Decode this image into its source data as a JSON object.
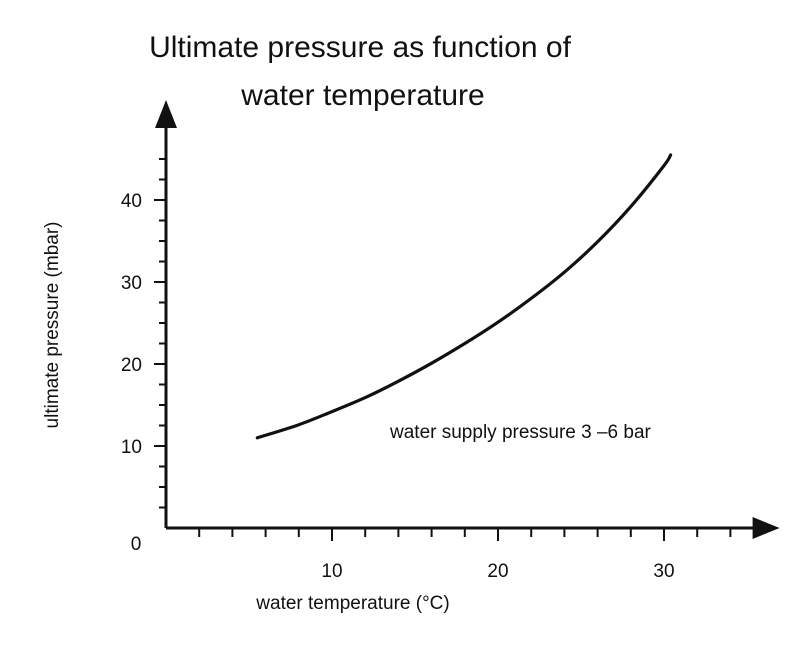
{
  "chart_data": {
    "type": "line",
    "title_lines": [
      "Ultimate pressure as function of",
      "water temperature"
    ],
    "xlabel": "water temperature (°C)",
    "ylabel": "ultimate pressure (mbar)",
    "origin_label": "0",
    "xlim": [
      0,
      36
    ],
    "ylim": [
      0,
      50
    ],
    "x_ticks": [
      10,
      20,
      30
    ],
    "y_ticks": [
      10,
      20,
      30,
      40
    ],
    "x_minor_step": 2,
    "y_minor_step": 2.5,
    "grid": false,
    "annotation": "water supply pressure 3 –6 bar",
    "series": [
      {
        "x": [
          5.5,
          8,
          10,
          12,
          14,
          16,
          18,
          20,
          22,
          24,
          26,
          28,
          30,
          30.4
        ],
        "values": [
          11,
          12.6,
          14.2,
          15.9,
          17.9,
          20.1,
          22.5,
          25.1,
          28.0,
          31.2,
          34.9,
          39.2,
          44.2,
          45.5
        ]
      }
    ],
    "colors": {
      "line": "#111111",
      "axis": "#111111"
    }
  }
}
